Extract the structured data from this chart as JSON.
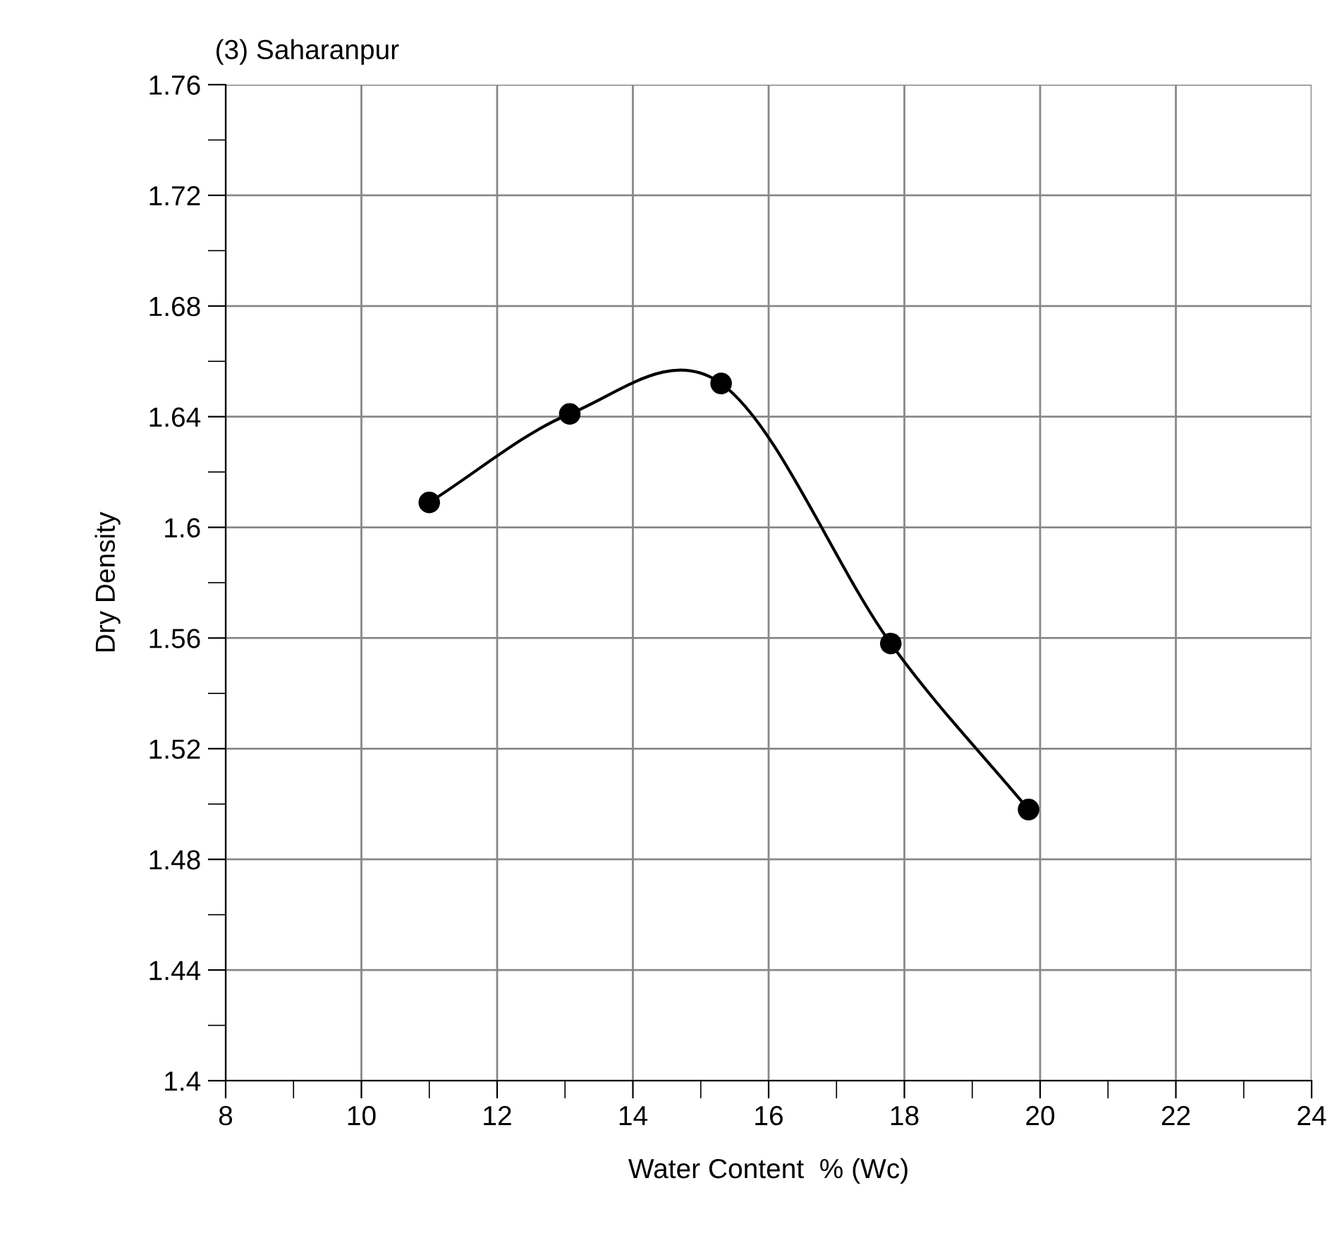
{
  "chart_data": {
    "type": "line",
    "title": "(3) Saharanpur",
    "xlabel": "Water Content  % (Wc)",
    "ylabel": "Dry Density",
    "x": [
      11.0,
      13.07,
      15.3,
      17.8,
      19.83
    ],
    "series": [
      {
        "color": "#000000",
        "values": [
          1.609,
          1.641,
          1.652,
          1.558,
          1.498
        ]
      }
    ],
    "xlim": [
      8,
      24
    ],
    "xticks": [
      8,
      10,
      12,
      14,
      16,
      18,
      20,
      22,
      24
    ],
    "ylim": [
      1.4,
      1.76
    ],
    "yticks": [
      1.4,
      1.44,
      1.48,
      1.52,
      1.56,
      1.6,
      1.64,
      1.68,
      1.72,
      1.76
    ],
    "grid": true,
    "marker": "circle",
    "line_style": "solid",
    "legend": false
  }
}
